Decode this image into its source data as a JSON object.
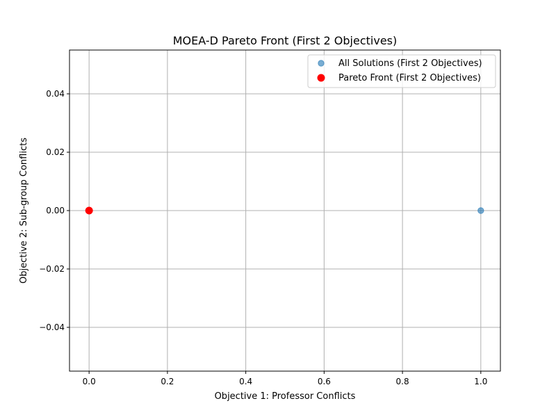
{
  "chart_data": {
    "type": "scatter",
    "title": "MOEA-D Pareto Front (First 2 Objectives)",
    "xlabel": "Objective 1: Professor Conflicts",
    "ylabel": "Objective 2: Sub-group Conflicts",
    "xlim": [
      -0.05,
      1.05
    ],
    "ylim": [
      -0.055,
      0.055
    ],
    "xticks": [
      0.0,
      0.2,
      0.4,
      0.6,
      0.8,
      1.0
    ],
    "xtick_labels": [
      "0.0",
      "0.2",
      "0.4",
      "0.6",
      "0.8",
      "1.0"
    ],
    "yticks": [
      -0.04,
      -0.02,
      0.0,
      0.02,
      0.04
    ],
    "ytick_labels": [
      "−0.04",
      "−0.02",
      "0.00",
      "0.02",
      "0.04"
    ],
    "grid": true,
    "legend_position": "top-right",
    "series": [
      {
        "name": "All Solutions (First 2 Objectives)",
        "color": "#1f77b4",
        "points": [
          {
            "x": 0,
            "y": 0
          },
          {
            "x": 1,
            "y": 0
          }
        ]
      },
      {
        "name": "Pareto Front (First 2 Objectives)",
        "color": "#ff0000",
        "points": [
          {
            "x": 0,
            "y": 0
          }
        ]
      }
    ]
  }
}
